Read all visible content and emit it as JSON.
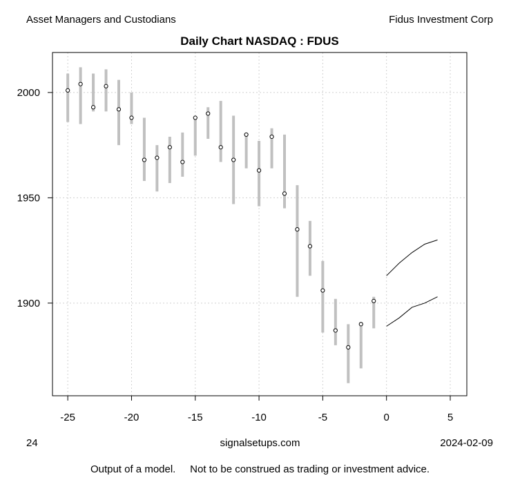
{
  "header": {
    "left": "Asset Managers and Custodians",
    "right": "Fidus Investment Corp"
  },
  "footer": {
    "left": "24",
    "center": "signalsetups.com",
    "right": "2024-02-09",
    "disclaimer": "Output of a model.     Not to be construed as trading or investment advice."
  },
  "chart_data": {
    "type": "range-dot",
    "title": "Daily Chart NASDAQ : FDUS",
    "xlabel": "",
    "ylabel": "",
    "xlim": [
      -26.2,
      6.3
    ],
    "ylim": [
      1856,
      2019
    ],
    "x_ticks": [
      -25,
      -20,
      -15,
      -10,
      -5,
      0,
      5
    ],
    "y_ticks": [
      1900,
      1950,
      2000
    ],
    "grid": true,
    "colors": {
      "range": "#c0c0c0",
      "grid": "#d0d0d0",
      "line": "#000000"
    },
    "bars": [
      {
        "x": -25,
        "low": 1986,
        "high": 2009,
        "close": 2001
      },
      {
        "x": -24,
        "low": 1985,
        "high": 2012,
        "close": 2004
      },
      {
        "x": -23,
        "low": 1991,
        "high": 2009,
        "close": 1993
      },
      {
        "x": -22,
        "low": 1991,
        "high": 2011,
        "close": 2003
      },
      {
        "x": -21,
        "low": 1975,
        "high": 2006,
        "close": 1992
      },
      {
        "x": -20,
        "low": 1985,
        "high": 2000,
        "close": 1988
      },
      {
        "x": -19,
        "low": 1958,
        "high": 1988,
        "close": 1968
      },
      {
        "x": -18,
        "low": 1953,
        "high": 1975,
        "close": 1969
      },
      {
        "x": -17,
        "low": 1957,
        "high": 1979,
        "close": 1974
      },
      {
        "x": -16,
        "low": 1960,
        "high": 1981,
        "close": 1967
      },
      {
        "x": -15,
        "low": 1970,
        "high": 1988,
        "close": 1988
      },
      {
        "x": -14,
        "low": 1978,
        "high": 1993,
        "close": 1990
      },
      {
        "x": -13,
        "low": 1967,
        "high": 1996,
        "close": 1974
      },
      {
        "x": -12,
        "low": 1947,
        "high": 1989,
        "close": 1968
      },
      {
        "x": -11,
        "low": 1964,
        "high": 1981,
        "close": 1980
      },
      {
        "x": -10,
        "low": 1946,
        "high": 1977,
        "close": 1963
      },
      {
        "x": -9,
        "low": 1964,
        "high": 1983,
        "close": 1979
      },
      {
        "x": -8,
        "low": 1945,
        "high": 1980,
        "close": 1952
      },
      {
        "x": -7,
        "low": 1903,
        "high": 1956,
        "close": 1935
      },
      {
        "x": -6,
        "low": 1913,
        "high": 1939,
        "close": 1927
      },
      {
        "x": -5,
        "low": 1886,
        "high": 1920,
        "close": 1906
      },
      {
        "x": -4,
        "low": 1880,
        "high": 1902,
        "close": 1887
      },
      {
        "x": -3,
        "low": 1862,
        "high": 1890,
        "close": 1879
      },
      {
        "x": -2,
        "low": 1869,
        "high": 1891,
        "close": 1890
      },
      {
        "x": -1,
        "low": 1888,
        "high": 1903,
        "close": 1901
      }
    ],
    "forecast_upper": {
      "x": [
        0,
        1,
        2,
        3,
        4
      ],
      "y": [
        1913,
        1919,
        1924,
        1928,
        1930
      ]
    },
    "forecast_lower": {
      "x": [
        0,
        1,
        2,
        3,
        4
      ],
      "y": [
        1889,
        1893,
        1898,
        1900,
        1903
      ]
    }
  }
}
